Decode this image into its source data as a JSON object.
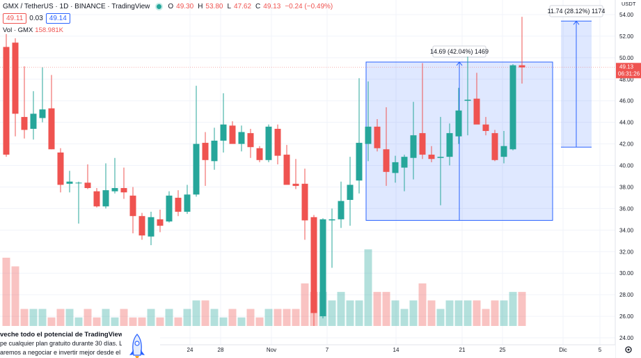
{
  "header": {
    "symbol": "GMX / TetherUS · 1D · BINANCE · TradingView",
    "open_label": "O",
    "open": "49.30",
    "high_label": "H",
    "high": "53.80",
    "low_label": "L",
    "low": "47.62",
    "close_label": "C",
    "close": "49.13",
    "change": "−0.24 (−0.49%)",
    "sell_price": "49.11",
    "spread": "0.03",
    "buy_price": "49.14",
    "volume_label": "Vol · GMX",
    "volume_value": "158.981K"
  },
  "promo": {
    "title": "veche todo el potencial de TradingView",
    "line1": "pe cualquier plan gratuito durante 30 días. Le",
    "line2": "aremos a negociar e invertir mejor desde el"
  },
  "colors": {
    "up": "#26a69a",
    "down": "#ef5350",
    "range_fill": "#2962ff",
    "grid": "#f0f3fa"
  },
  "chart_data": {
    "type": "candlestick",
    "y_axis_currency": "USDT",
    "y_ticks": [
      "24.00",
      "26.00",
      "28.00",
      "30.00",
      "32.00",
      "34.00",
      "36.00",
      "38.00",
      "40.00",
      "42.00",
      "44.00",
      "46.00",
      "48.00",
      "50.00",
      "52.00",
      "54.00"
    ],
    "x_tick_labels": [
      "24",
      "28",
      "Nov",
      "7",
      "14",
      "21",
      "25",
      "Dic",
      "5"
    ],
    "last_price": "49.13",
    "countdown": "06:31:26",
    "grid": true,
    "candles": [
      [
        null,
        51.0,
        52.2,
        40.8,
        41.0
      ],
      [
        null,
        51.4,
        51.8,
        42.7,
        44.8
      ],
      [
        null,
        44.5,
        49.2,
        42.5,
        43.3
      ],
      [
        null,
        43.4,
        46.9,
        42.4,
        44.8
      ],
      [
        null,
        44.4,
        49.1,
        44.0,
        45.2
      ],
      [
        null,
        45.3,
        48.4,
        41.5,
        41.5
      ],
      [
        null,
        41.2,
        41.6,
        37.5,
        38.2
      ],
      [
        null,
        38.3,
        39.5,
        37.5,
        38.5
      ],
      [
        null,
        38.4,
        38.5,
        34.6,
        38.4
      ],
      [
        null,
        38.4,
        40.1,
        37.8,
        37.9
      ],
      [
        null,
        37.6,
        37.9,
        36.1,
        36.2
      ],
      [
        null,
        36.2,
        40.2,
        36.0,
        37.7
      ],
      [
        null,
        37.6,
        40.7,
        37.4,
        37.9
      ],
      [
        null,
        37.9,
        39.8,
        36.9,
        37.5
      ],
      [
        null,
        37.2,
        38.0,
        33.7,
        35.3
      ],
      [
        null,
        35.3,
        35.6,
        33.1,
        33.5
      ],
      [
        null,
        33.4,
        35.7,
        32.6,
        35.2
      ],
      [
        null,
        35.0,
        35.9,
        33.8,
        34.4
      ],
      [
        null,
        34.8,
        37.6,
        34.7,
        37.2
      ],
      [
        null,
        37.0,
        37.7,
        35.3,
        35.7
      ],
      [
        null,
        35.7,
        38.2,
        35.5,
        37.3
      ],
      [
        null,
        37.3,
        47.4,
        37.1,
        42.0
      ],
      [
        null,
        42.1,
        43.1,
        38.1,
        40.5
      ],
      [
        null,
        40.4,
        43.5,
        39.6,
        42.3
      ],
      [
        null,
        42.3,
        46.7,
        41.2,
        43.8
      ],
      [
        null,
        43.7,
        44.1,
        42.1,
        42.0
      ],
      [
        null,
        42.0,
        43.7,
        41.3,
        43.1
      ],
      [
        null,
        43.0,
        43.4,
        40.7,
        41.7
      ],
      [
        null,
        41.6,
        41.8,
        40.3,
        40.5
      ],
      [
        null,
        40.5,
        43.8,
        40.3,
        43.6
      ],
      [
        null,
        43.4,
        43.8,
        40.1,
        40.9
      ],
      [
        null,
        41.0,
        41.9,
        38.3,
        38.2
      ],
      [
        null,
        38.3,
        40.6,
        37.8,
        38.1
      ],
      [
        null,
        38.3,
        39.7,
        33.1,
        34.9
      ],
      [
        null,
        35.2,
        35.4,
        25.1,
        26.3
      ],
      [
        null,
        26.0,
        35.1,
        25.8,
        35.0
      ],
      [
        null,
        34.9,
        36.0,
        30.5,
        35.0
      ],
      [
        null,
        35.0,
        38.5,
        34.2,
        36.7
      ],
      [
        null,
        36.8,
        40.8,
        34.4,
        38.2
      ],
      [
        null,
        38.6,
        48.1,
        37.4,
        42.1
      ],
      [
        null,
        42.0,
        47.8,
        40.4,
        43.6
      ],
      [
        null,
        43.6,
        44.3,
        41.3,
        41.6
      ],
      [
        null,
        41.5,
        45.4,
        38.1,
        39.4
      ],
      [
        null,
        39.3,
        40.9,
        38.4,
        40.3
      ],
      [
        null,
        39.8,
        41.0,
        37.6,
        40.8
      ],
      [
        null,
        40.7,
        45.9,
        38.7,
        42.8
      ],
      [
        null,
        43.0,
        49.5,
        40.6,
        41.0
      ],
      [
        null,
        41.0,
        41.8,
        40.3,
        40.6
      ],
      [
        null,
        40.7,
        44.5,
        36.3,
        40.8
      ],
      [
        null,
        40.8,
        43.9,
        40.0,
        43.0
      ],
      [
        null,
        42.7,
        47.2,
        42.0,
        45.1
      ],
      [
        null,
        46.0,
        50.1,
        42.8,
        46.1
      ],
      [
        null,
        46.2,
        48.6,
        44.0,
        43.8
      ],
      [
        null,
        43.8,
        44.5,
        42.8,
        43.2
      ],
      [
        null,
        43.0,
        43.3,
        40.4,
        40.5
      ],
      [
        null,
        40.8,
        43.2,
        40.2,
        41.8
      ],
      [
        null,
        41.5,
        49.4,
        41.4,
        49.3
      ],
      [
        null,
        49.3,
        53.8,
        47.6,
        49.1
      ]
    ],
    "volumes_note": "volume bars shown as relative heights",
    "volumes": [
      3,
      7,
      2,
      2,
      2,
      1,
      2,
      2,
      1,
      2,
      1,
      2,
      1,
      2,
      1,
      1,
      2,
      1,
      2,
      1,
      2,
      3,
      3,
      2,
      1,
      2,
      1,
      2,
      1,
      2,
      2,
      2,
      2,
      5,
      4,
      4,
      3,
      4,
      3,
      3,
      9,
      4,
      4,
      3,
      2,
      3,
      5,
      3,
      2,
      3,
      3,
      3,
      3,
      2,
      3,
      3,
      4,
      4
    ],
    "measure_ranges": [
      {
        "label": "14.69 (42.04%) 1469",
        "from": 34.9,
        "to": 49.6
      },
      {
        "label": "11.74 (28.12%) 1174",
        "from": 41.7,
        "to": 53.4
      }
    ]
  }
}
